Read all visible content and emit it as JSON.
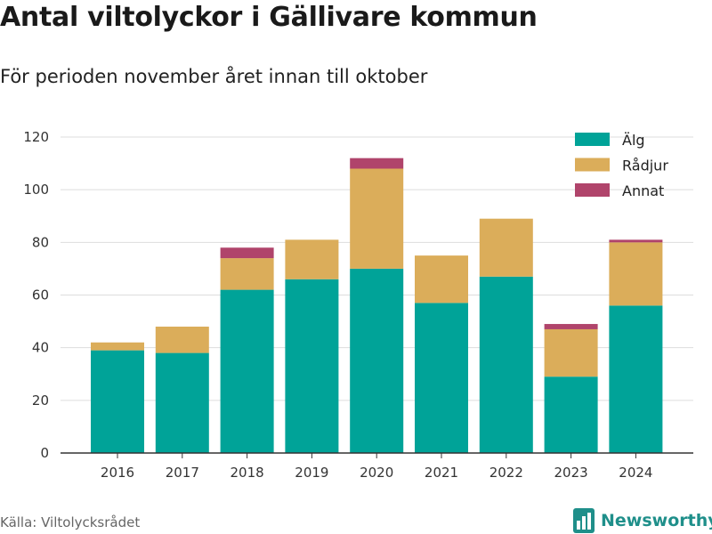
{
  "title": "Antal viltolyckor i Gällivare kommun",
  "subtitle": "För perioden november året innan till oktober",
  "source": "Källa: Viltolycksrådet",
  "brand": {
    "name": "Newsworthy",
    "icon": "bar-chart-logo-icon",
    "color": "#1f8f8a"
  },
  "chart_data": {
    "type": "bar",
    "stacked": true,
    "categories": [
      "2016",
      "2017",
      "2018",
      "2019",
      "2020",
      "2021",
      "2022",
      "2023",
      "2024"
    ],
    "series": [
      {
        "name": "Älg",
        "color": "#00a398",
        "values": [
          39,
          38,
          62,
          66,
          70,
          57,
          67,
          29,
          56
        ]
      },
      {
        "name": "Rådjur",
        "color": "#dbad5a",
        "values": [
          3,
          10,
          12,
          15,
          38,
          18,
          22,
          18,
          24
        ]
      },
      {
        "name": "Annat",
        "color": "#b0446b",
        "values": [
          0,
          0,
          4,
          0,
          4,
          0,
          0,
          2,
          1
        ]
      }
    ],
    "ylim": [
      0,
      120
    ],
    "yticks": [
      "0",
      "20",
      "40",
      "60",
      "80",
      "100",
      "120"
    ],
    "grid": true,
    "legend_position": "top-right"
  }
}
